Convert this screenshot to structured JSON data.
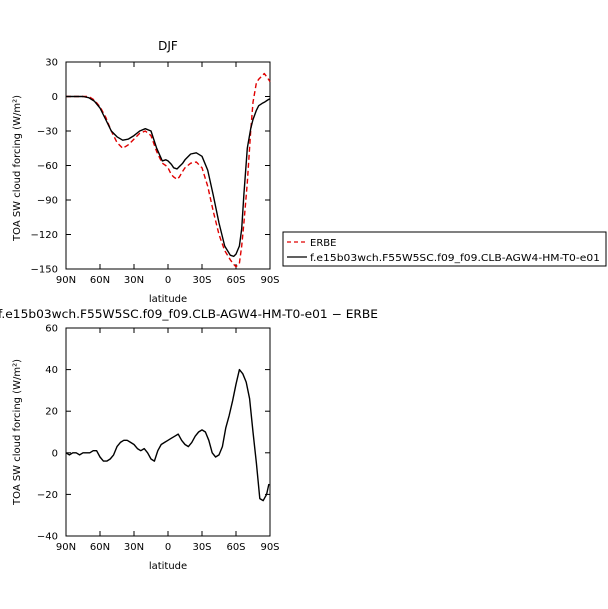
{
  "chart_data": [
    {
      "type": "line",
      "title": "DJF",
      "xlabel": "latitude",
      "ylabel": "TOA SW cloud forcing (W/m²)",
      "xlim": [
        -90,
        90
      ],
      "ylim": [
        -150,
        30
      ],
      "x_tick_labels": [
        "90N",
        "60N",
        "30N",
        "0",
        "30S",
        "60S",
        "90S"
      ],
      "y_tick_labels": [
        "30",
        "0",
        "−30",
        "−60",
        "−90",
        "−120",
        "−150"
      ],
      "legend_position": "right",
      "series": [
        {
          "name": "ERBE",
          "color": "#e00000",
          "dash": "dashed",
          "x": [
            -90,
            -80,
            -75,
            -70,
            -65,
            -60,
            -55,
            -50,
            -45,
            -40,
            -35,
            -30,
            -25,
            -20,
            -15,
            -10,
            -5,
            -2,
            0,
            3,
            5,
            8,
            10,
            13,
            15,
            20,
            25,
            30,
            35,
            40,
            45,
            50,
            55,
            58,
            60,
            63,
            65,
            67,
            70,
            73,
            75,
            78,
            80,
            83,
            85,
            88,
            90
          ],
          "values": [
            0,
            0,
            0,
            0,
            -3,
            -9,
            -18,
            -30,
            -40,
            -45,
            -42,
            -37,
            -32,
            -30,
            -34,
            -48,
            -58,
            -60,
            -62,
            -68,
            -70,
            -72,
            -70,
            -65,
            -62,
            -58,
            -57,
            -62,
            -78,
            -100,
            -120,
            -134,
            -142,
            -146,
            -148,
            -145,
            -130,
            -110,
            -75,
            -30,
            -5,
            12,
            15,
            18,
            20,
            16,
            13
          ]
        },
        {
          "name": "f.e15b03wch.F55W5SC.f09_f09.CLB-AGW4-HM-T0-e01",
          "color": "#000000",
          "dash": "solid",
          "x": [
            -90,
            -80,
            -75,
            -70,
            -65,
            -60,
            -55,
            -50,
            -45,
            -40,
            -35,
            -30,
            -25,
            -20,
            -15,
            -10,
            -5,
            -2,
            0,
            3,
            5,
            8,
            10,
            13,
            15,
            20,
            25,
            30,
            35,
            40,
            45,
            50,
            55,
            58,
            60,
            63,
            65,
            67,
            70,
            73,
            75,
            78,
            80,
            83,
            85,
            88,
            90
          ],
          "values": [
            0,
            0,
            0,
            -1,
            -4,
            -10,
            -20,
            -30,
            -35,
            -38,
            -37,
            -34,
            -30,
            -28,
            -30,
            -45,
            -56,
            -55,
            -56,
            -59,
            -62,
            -63,
            -61,
            -58,
            -55,
            -50,
            -49,
            -52,
            -64,
            -86,
            -110,
            -130,
            -138,
            -139,
            -137,
            -130,
            -115,
            -85,
            -45,
            -28,
            -20,
            -12,
            -8,
            -6,
            -5,
            -3,
            -2
          ]
        }
      ]
    },
    {
      "type": "line",
      "title": "f.e15b03wch.F55W5SC.f09_f09.CLB-AGW4-HM-T0-e01 − ERBE",
      "xlabel": "latitude",
      "ylabel": "TOA SW cloud forcing (W/m²)",
      "xlim": [
        -90,
        90
      ],
      "ylim": [
        -40,
        60
      ],
      "x_tick_labels": [
        "90N",
        "60N",
        "30N",
        "0",
        "30S",
        "60S",
        "90S"
      ],
      "y_tick_labels": [
        "60",
        "40",
        "20",
        "0",
        "−20",
        "−40"
      ],
      "series": [
        {
          "color": "#000000",
          "x": [
            -90,
            -87,
            -84,
            -81,
            -78,
            -75,
            -72,
            -69,
            -66,
            -63,
            -60,
            -57,
            -54,
            -51,
            -48,
            -45,
            -42,
            -39,
            -36,
            -33,
            -30,
            -27,
            -24,
            -21,
            -18,
            -15,
            -12,
            -9,
            -6,
            -3,
            0,
            3,
            6,
            9,
            12,
            15,
            18,
            21,
            24,
            27,
            30,
            33,
            36,
            39,
            42,
            45,
            48,
            51,
            54,
            57,
            60,
            63,
            66,
            69,
            72,
            75,
            78,
            81,
            84,
            87,
            89
          ],
          "values": [
            0,
            -1,
            0,
            0,
            -1,
            0,
            0,
            0,
            1,
            1,
            -2,
            -4,
            -4,
            -3,
            -1,
            3,
            5,
            6,
            6,
            5,
            4,
            2,
            1,
            2,
            0,
            -3,
            -4,
            1,
            4,
            5,
            6,
            7,
            8,
            9,
            6,
            4,
            3,
            5,
            8,
            10,
            11,
            10,
            6,
            0,
            -2,
            -1,
            3,
            12,
            18,
            25,
            33,
            40,
            38,
            34,
            26,
            10,
            -5,
            -22,
            -23,
            -20,
            -15
          ]
        }
      ]
    }
  ]
}
